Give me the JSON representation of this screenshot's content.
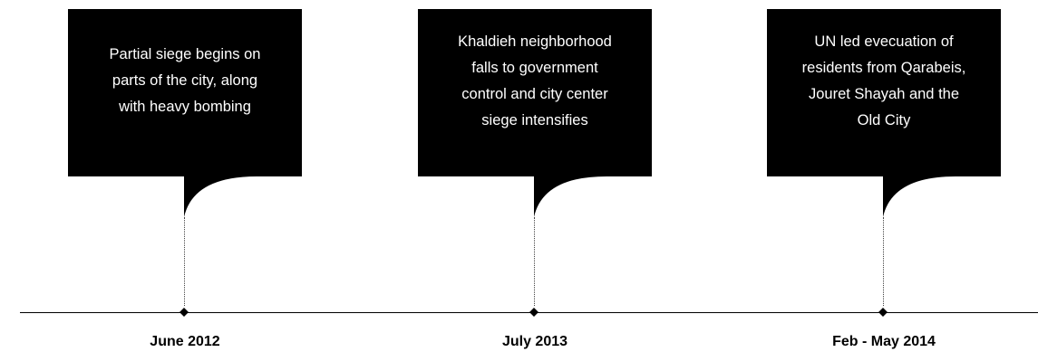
{
  "colors": {
    "callout_fill": "#000000",
    "callout_text": "#ffffff",
    "axis": "#000000",
    "date_text": "#000000"
  },
  "events": [
    {
      "date": "June 2012",
      "text": "Partial siege begins on\nparts of the city, along\nwith heavy bombing"
    },
    {
      "date": "July 2013",
      "text": "Khaldieh neighborhood\nfalls to government\ncontrol and city center\nsiege intensifies"
    },
    {
      "date": "Feb - May 2014",
      "text": "UN led evecuation of\nresidents from Qarabeis,\nJouret Shayah and the\nOld City"
    }
  ]
}
